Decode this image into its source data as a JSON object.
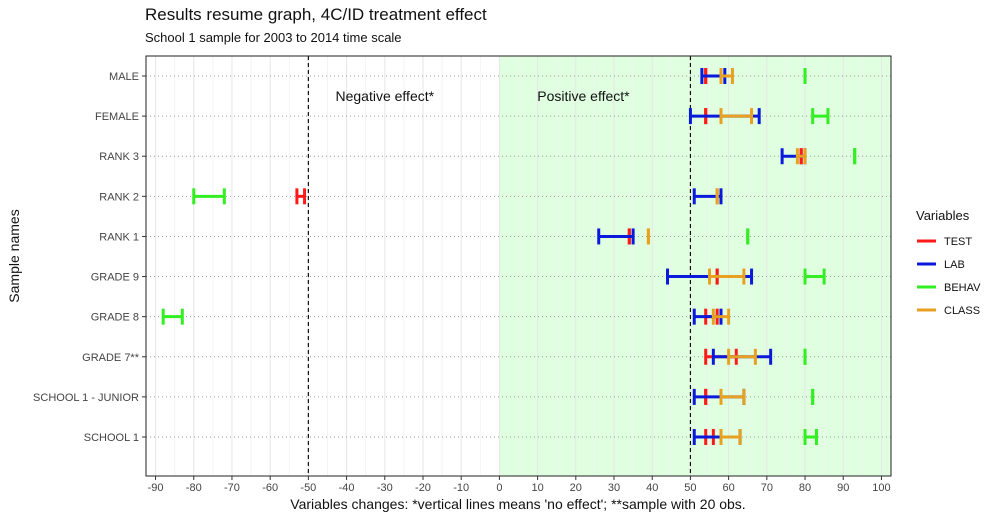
{
  "chart_data": {
    "type": "errorbar",
    "title": "Results resume graph, 4C/ID treatment effect",
    "subtitle": "School 1 sample for 2003 to 2014 time scale",
    "xlabel": "Variables changes: *vertical lines means 'no effect'; **sample with 20 obs.",
    "ylabel": "Sample names",
    "xlim": [
      -92.5,
      102.5
    ],
    "x_ticks": [
      -90,
      -80,
      -70,
      -60,
      -50,
      -40,
      -30,
      -20,
      -10,
      0,
      10,
      20,
      30,
      40,
      50,
      60,
      70,
      80,
      90,
      100
    ],
    "x_tick_labels": [
      "-90",
      "-80",
      "-70",
      "-60",
      "-50",
      "-40",
      "-30",
      "-20",
      "-10",
      "0",
      "10",
      "20",
      "30",
      "40",
      "50",
      "60",
      "70",
      "80",
      "90",
      "100"
    ],
    "categories": [
      "MALE",
      "FEMALE",
      "RANK 3",
      "RANK 2",
      "RANK 1",
      "GRADE 9",
      "GRADE 8",
      "GRADE 7**",
      "SCHOOL 1 - JUNIOR",
      "SCHOOL 1"
    ],
    "reference_lines": [
      -50,
      50
    ],
    "shaded_region": [
      0,
      102.5
    ],
    "shaded_color": "#e0ffe0",
    "annotations": [
      {
        "text": "Negative effect*",
        "x": -30,
        "category": "MALE",
        "offset": 0.5
      },
      {
        "text": "Positive effect*",
        "x": 22,
        "category": "MALE",
        "offset": 0.5
      }
    ],
    "legend": {
      "title": "Variables",
      "position": "right"
    },
    "series": [
      {
        "name": "TEST",
        "color": "#ff1a1a",
        "intervals": [
          {
            "category": "MALE",
            "low": 54,
            "high": 54
          },
          {
            "category": "FEMALE",
            "low": 54,
            "high": 54
          },
          {
            "category": "RANK 3",
            "low": 79,
            "high": 79
          },
          {
            "category": "RANK 2",
            "low": -53,
            "high": -51
          },
          {
            "category": "RANK 1",
            "low": 34,
            "high": 34
          },
          {
            "category": "GRADE 9",
            "low": 57,
            "high": 57
          },
          {
            "category": "GRADE 8",
            "low": 54,
            "high": 57
          },
          {
            "category": "GRADE 7**",
            "low": 54,
            "high": 62
          },
          {
            "category": "SCHOOL 1 - JUNIOR",
            "low": 54,
            "high": 54
          },
          {
            "category": "SCHOOL 1",
            "low": 54,
            "high": 56
          }
        ]
      },
      {
        "name": "LAB",
        "color": "#0a1adb",
        "intervals": [
          {
            "category": "MALE",
            "low": 53,
            "high": 59
          },
          {
            "category": "FEMALE",
            "low": 50,
            "high": 68
          },
          {
            "category": "RANK 3",
            "low": 74,
            "high": 80
          },
          {
            "category": "RANK 2",
            "low": 51,
            "high": 58
          },
          {
            "category": "RANK 1",
            "low": 26,
            "high": 35
          },
          {
            "category": "GRADE 9",
            "low": 44,
            "high": 66
          },
          {
            "category": "GRADE 8",
            "low": 51,
            "high": 58
          },
          {
            "category": "GRADE 7**",
            "low": 56,
            "high": 71
          },
          {
            "category": "SCHOOL 1 - JUNIOR",
            "low": 51,
            "high": 64
          },
          {
            "category": "SCHOOL 1",
            "low": 51,
            "high": 63
          }
        ]
      },
      {
        "name": "BEHAV",
        "color": "#33ee22",
        "intervals": [
          {
            "category": "MALE",
            "low": 80,
            "high": 80
          },
          {
            "category": "FEMALE",
            "low": 82,
            "high": 86
          },
          {
            "category": "RANK 3",
            "low": 93,
            "high": 93
          },
          {
            "category": "RANK 2",
            "low": -80,
            "high": -72
          },
          {
            "category": "RANK 1",
            "low": 65,
            "high": 65
          },
          {
            "category": "GRADE 9",
            "low": 80,
            "high": 85
          },
          {
            "category": "GRADE 8",
            "low": -88,
            "high": -83
          },
          {
            "category": "GRADE 7**",
            "low": 80,
            "high": 80
          },
          {
            "category": "SCHOOL 1 - JUNIOR",
            "low": 82,
            "high": 82
          },
          {
            "category": "SCHOOL 1",
            "low": 80,
            "high": 83
          }
        ]
      },
      {
        "name": "CLASS",
        "color": "#e8a020",
        "intervals": [
          {
            "category": "MALE",
            "low": 58,
            "high": 61
          },
          {
            "category": "FEMALE",
            "low": 58,
            "high": 66
          },
          {
            "category": "RANK 3",
            "low": 78,
            "high": 80
          },
          {
            "category": "RANK 2",
            "low": 57,
            "high": 57
          },
          {
            "category": "RANK 1",
            "low": 39,
            "high": 39
          },
          {
            "category": "GRADE 9",
            "low": 55,
            "high": 64
          },
          {
            "category": "GRADE 8",
            "low": 56,
            "high": 60
          },
          {
            "category": "GRADE 7**",
            "low": 60,
            "high": 67
          },
          {
            "category": "SCHOOL 1 - JUNIOR",
            "low": 58,
            "high": 64
          },
          {
            "category": "SCHOOL 1",
            "low": 58,
            "high": 63
          }
        ]
      }
    ]
  }
}
